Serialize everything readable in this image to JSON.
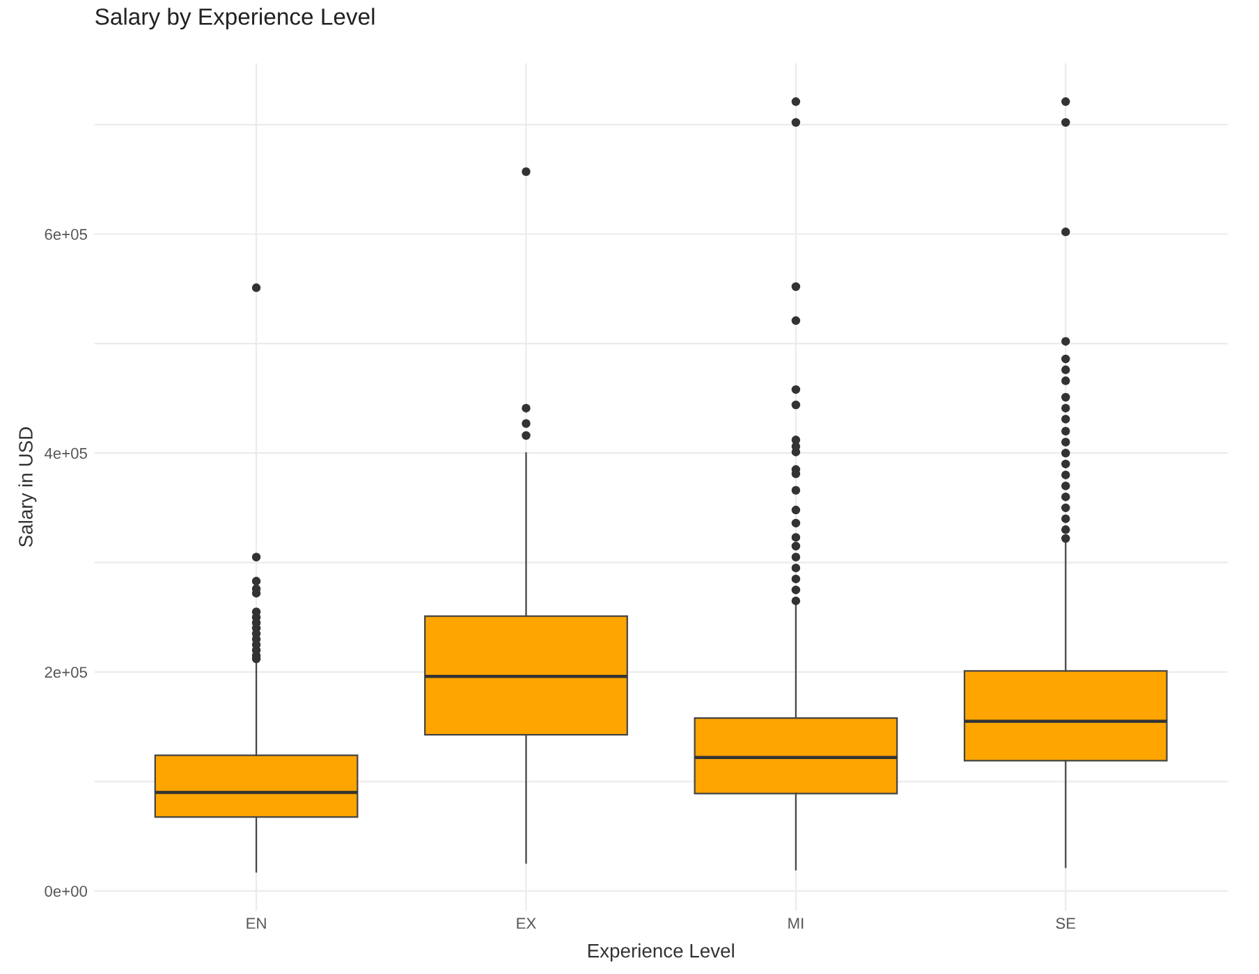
{
  "chart_data": {
    "type": "box",
    "title": "Salary by Experience Level",
    "xlabel": "Experience Level",
    "ylabel": "Salary in USD",
    "categories": [
      "EN",
      "EX",
      "MI",
      "SE"
    ],
    "series": [
      {
        "color": "#ffa500",
        "boxes": [
          {
            "low": 17500,
            "q1": 67500,
            "median": 90000,
            "q3": 124000,
            "high": 208000,
            "outliers": [
              551000,
              305000,
              283000,
              276000,
              272000,
              255000,
              250000,
              245000,
              240000,
              235000,
              230000,
              225000,
              220000,
              215000,
              212000
            ]
          },
          {
            "low": 25600,
            "q1": 142700,
            "median": 196000,
            "q3": 251000,
            "high": 400000,
            "outliers": [
              657000,
              441000,
              427000,
              416000
            ]
          },
          {
            "low": 19500,
            "q1": 89000,
            "median": 122000,
            "q3": 158000,
            "high": 262000,
            "outliers": [
              721000,
              702000,
              552000,
              521000,
              458000,
              444000,
              412000,
              406000,
              401000,
              385000,
              381000,
              366000,
              348000,
              336000,
              323000,
              315000,
              305000,
              295000,
              285000,
              275000,
              265000
            ]
          },
          {
            "low": 21600,
            "q1": 119000,
            "median": 155000,
            "q3": 201000,
            "high": 319000,
            "outliers": [
              721000,
              702000,
              602000,
              502000,
              486000,
              476000,
              466000,
              451000,
              441000,
              431000,
              420000,
              410000,
              400000,
              390000,
              380000,
              370000,
              360000,
              350000,
              340000,
              330000,
              322000
            ]
          }
        ]
      }
    ],
    "ylim": [
      -18000,
      756000
    ],
    "yticks": [
      {
        "value": 0,
        "label": "0e+00"
      },
      {
        "value": 100000,
        "label": null
      },
      {
        "value": 200000,
        "label": "2e+05"
      },
      {
        "value": 300000,
        "label": null
      },
      {
        "value": 400000,
        "label": "4e+05"
      },
      {
        "value": 500000,
        "label": null
      },
      {
        "value": 600000,
        "label": "6e+05"
      },
      {
        "value": 700000,
        "label": null
      }
    ],
    "grid": true,
    "legend": false
  }
}
